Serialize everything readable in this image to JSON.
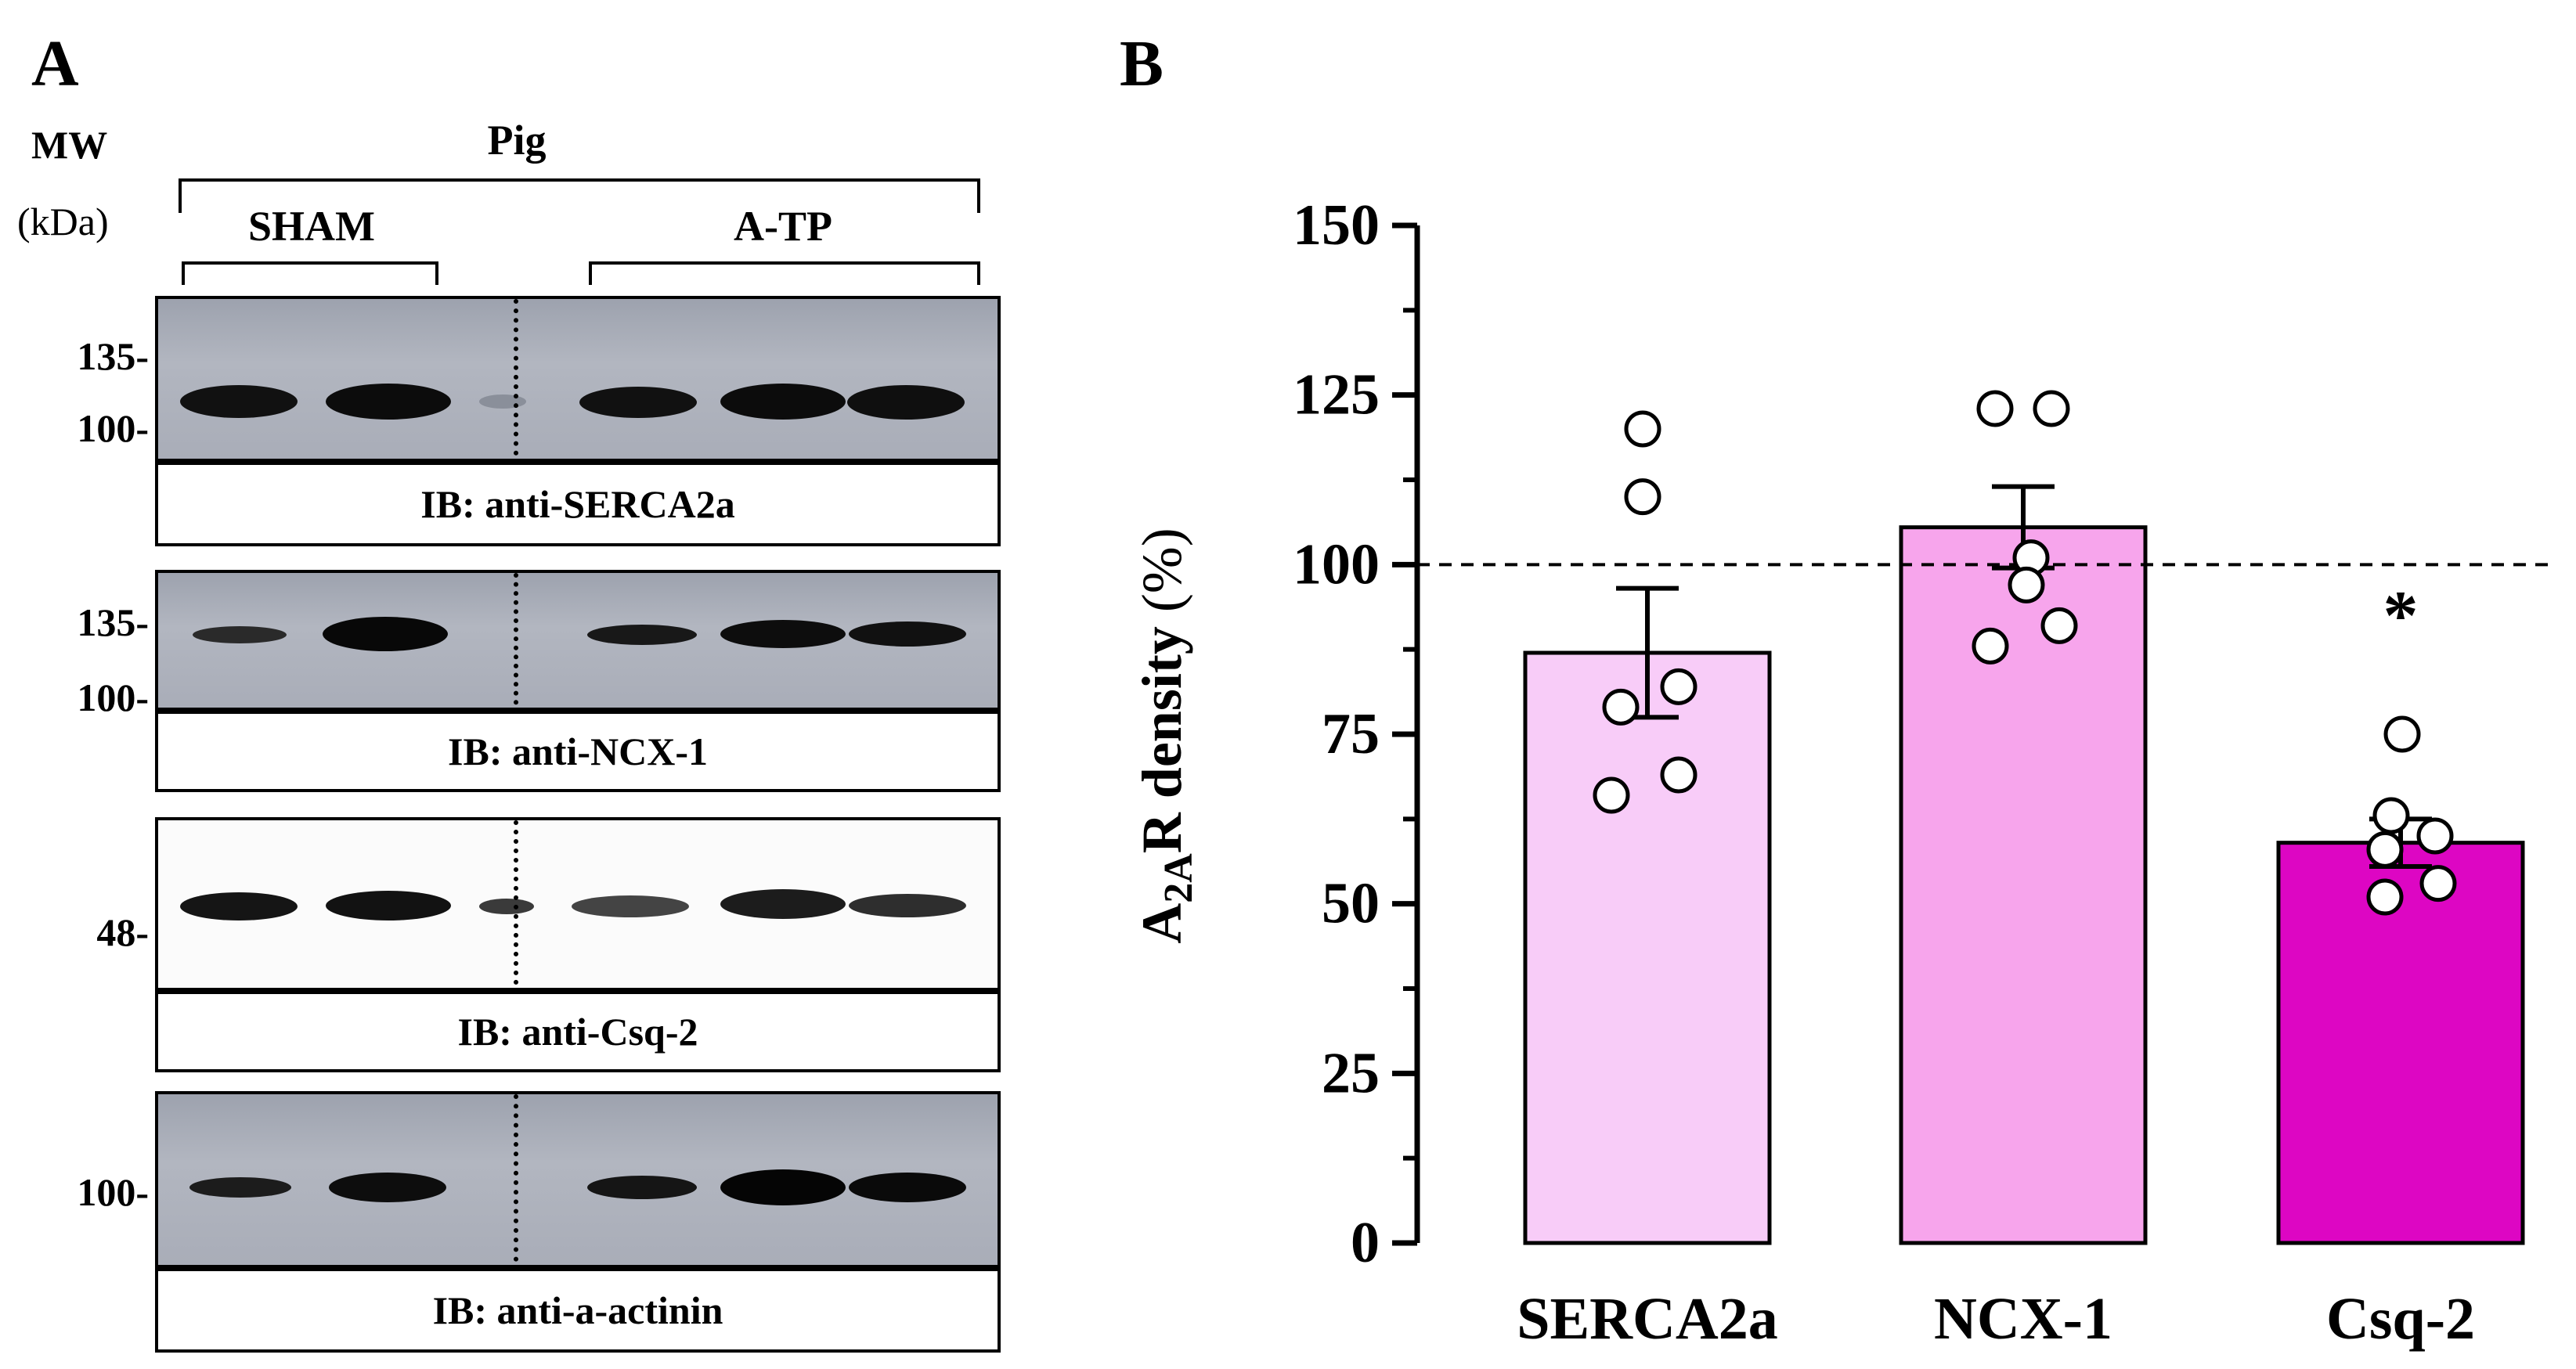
{
  "panel_a": {
    "letter": "A",
    "mw_label": "MW",
    "mw_unit": "(kDa)",
    "species": "Pig",
    "group_sham": "SHAM",
    "group_atp": "A-TP",
    "blots": [
      {
        "ib": "IB: anti-SERCA2a",
        "markers": [
          "135-",
          "100-"
        ],
        "style": "grey"
      },
      {
        "ib": "IB: anti-NCX-1",
        "markers": [
          "135-",
          "100-"
        ],
        "style": "grey"
      },
      {
        "ib": "IB: anti-Csq-2",
        "markers": [
          "48-"
        ],
        "style": "white"
      },
      {
        "ib": "IB: anti-a-actinin",
        "markers": [
          "100-"
        ],
        "style": "grey"
      }
    ]
  },
  "panel_b": {
    "letter": "B",
    "chart_data": {
      "type": "bar",
      "categories": [
        "SERCA2a",
        "NCX-1",
        "Csq-2"
      ],
      "values": [
        87,
        105.5,
        59
      ],
      "sem": [
        9.5,
        6,
        3.5
      ],
      "points": [
        [
          120,
          110,
          82,
          79,
          69,
          66
        ],
        [
          123,
          123,
          101,
          97,
          91,
          88
        ],
        [
          75,
          63,
          60,
          58,
          53,
          51
        ]
      ],
      "bar_colors": [
        "#f8ccf8",
        "#f7a5ec",
        "#dd06c3"
      ],
      "ylim": [
        0,
        150
      ],
      "yticks": [
        "0",
        "25",
        "50",
        "75",
        "100",
        "125",
        "150"
      ],
      "ylabel_main": "A",
      "ylabel_sub": "2A",
      "ylabel_rest": "R density",
      "ylabel_unit": "(%)",
      "reference_line": 100,
      "significance": [
        "",
        "",
        "*"
      ]
    }
  }
}
